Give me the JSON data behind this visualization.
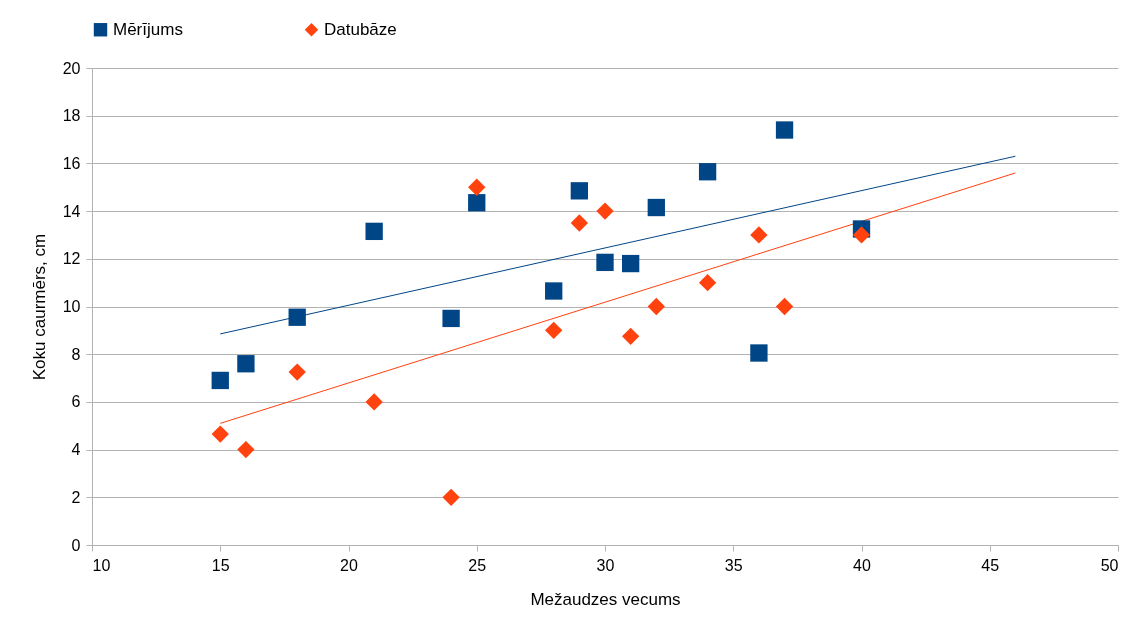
{
  "chart_data": {
    "type": "scatter",
    "xlabel": "Mežaudzes vecums",
    "ylabel": "Koku caurmērs, cm",
    "xlim": [
      10,
      50
    ],
    "xticks": [
      10,
      15,
      20,
      25,
      30,
      35,
      40,
      45,
      50
    ],
    "ylim": [
      0,
      20
    ],
    "yticks": [
      0,
      2,
      4,
      6,
      8,
      10,
      12,
      14,
      16,
      18,
      20
    ],
    "grid": "y",
    "legend": "top",
    "series": [
      {
        "name": "Mērījums",
        "color": "#004586",
        "marker": "square",
        "x": [
          15,
          16,
          18,
          21,
          24,
          25,
          28,
          29,
          30,
          31,
          32,
          34,
          36,
          37,
          40
        ],
        "values": [
          6.9,
          7.6,
          9.55,
          13.15,
          9.5,
          14.35,
          10.65,
          14.85,
          11.85,
          11.8,
          14.15,
          15.65,
          8.05,
          17.4,
          13.25
        ]
      },
      {
        "name": "Datubāze",
        "color": "#ff420e",
        "marker": "diamond",
        "x": [
          15,
          16,
          18,
          21,
          24,
          25,
          28,
          29,
          30,
          31,
          32,
          34,
          36,
          37,
          40
        ],
        "values": [
          4.65,
          4.0,
          7.25,
          6.0,
          2.0,
          15.0,
          9.0,
          13.5,
          14.0,
          8.75,
          10.0,
          11.0,
          13.0,
          10.0,
          13.0
        ]
      },
      {
        "type": "line",
        "color": "#004586",
        "x": [
          15,
          46
        ],
        "values": [
          8.85,
          16.3
        ]
      },
      {
        "type": "line",
        "color": "#ff420e",
        "x": [
          15,
          46
        ],
        "values": [
          5.1,
          15.6
        ]
      }
    ]
  }
}
